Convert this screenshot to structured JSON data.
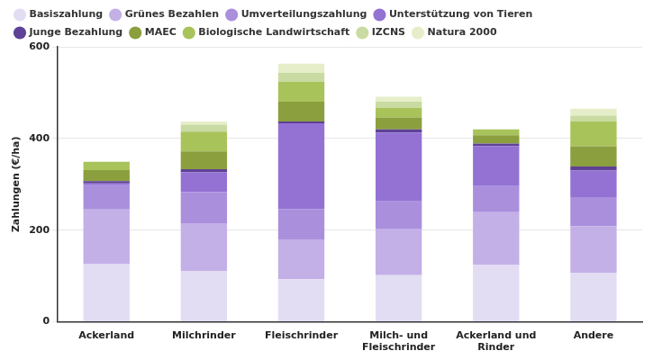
{
  "chart_data": {
    "type": "bar",
    "stacked": true,
    "grid": true,
    "legend": "top",
    "y_label": "Zahlungen (€/ha)",
    "categories": [
      "Ackerland",
      "Milchrinder",
      "Fleischrinder",
      "Milch- und Fleischrinder",
      "Ackerland und Rinder",
      "Andere"
    ],
    "ylim": [
      0,
      600
    ],
    "yticks": [
      0,
      200,
      400,
      600
    ],
    "series": [
      {
        "name": "Basiszahlung",
        "color": "#e3ddf4",
        "values": [
          126,
          111,
          93,
          102,
          124,
          107
        ]
      },
      {
        "name": "Grünes Bezahlen",
        "color": "#c3b0e7",
        "values": [
          119,
          104,
          87,
          100,
          115,
          102
        ]
      },
      {
        "name": "Umverteilungszahlung",
        "color": "#aa8fdd",
        "values": [
          53,
          68,
          66,
          61,
          57,
          63
        ]
      },
      {
        "name": "Unterstützung von Tieren",
        "color": "#9372d4",
        "values": [
          4,
          43,
          187,
          150,
          87,
          58
        ]
      },
      {
        "name": "Junge Bezahlung",
        "color": "#5f4197",
        "values": [
          5,
          7,
          4,
          7,
          6,
          9
        ]
      },
      {
        "name": "MAEC",
        "color": "#8b9f3f",
        "values": [
          24,
          39,
          43,
          26,
          18,
          44
        ]
      },
      {
        "name": "Biologische Landwirtschaft",
        "color": "#a9c35b",
        "values": [
          18,
          43,
          44,
          21,
          13,
          54
        ]
      },
      {
        "name": "IZCNS",
        "color": "#c9dba2",
        "values": [
          0,
          15,
          19,
          13,
          0,
          13
        ]
      },
      {
        "name": "Natura 2000",
        "color": "#e6eec9",
        "values": [
          0,
          7,
          20,
          11,
          0,
          15
        ]
      }
    ]
  }
}
